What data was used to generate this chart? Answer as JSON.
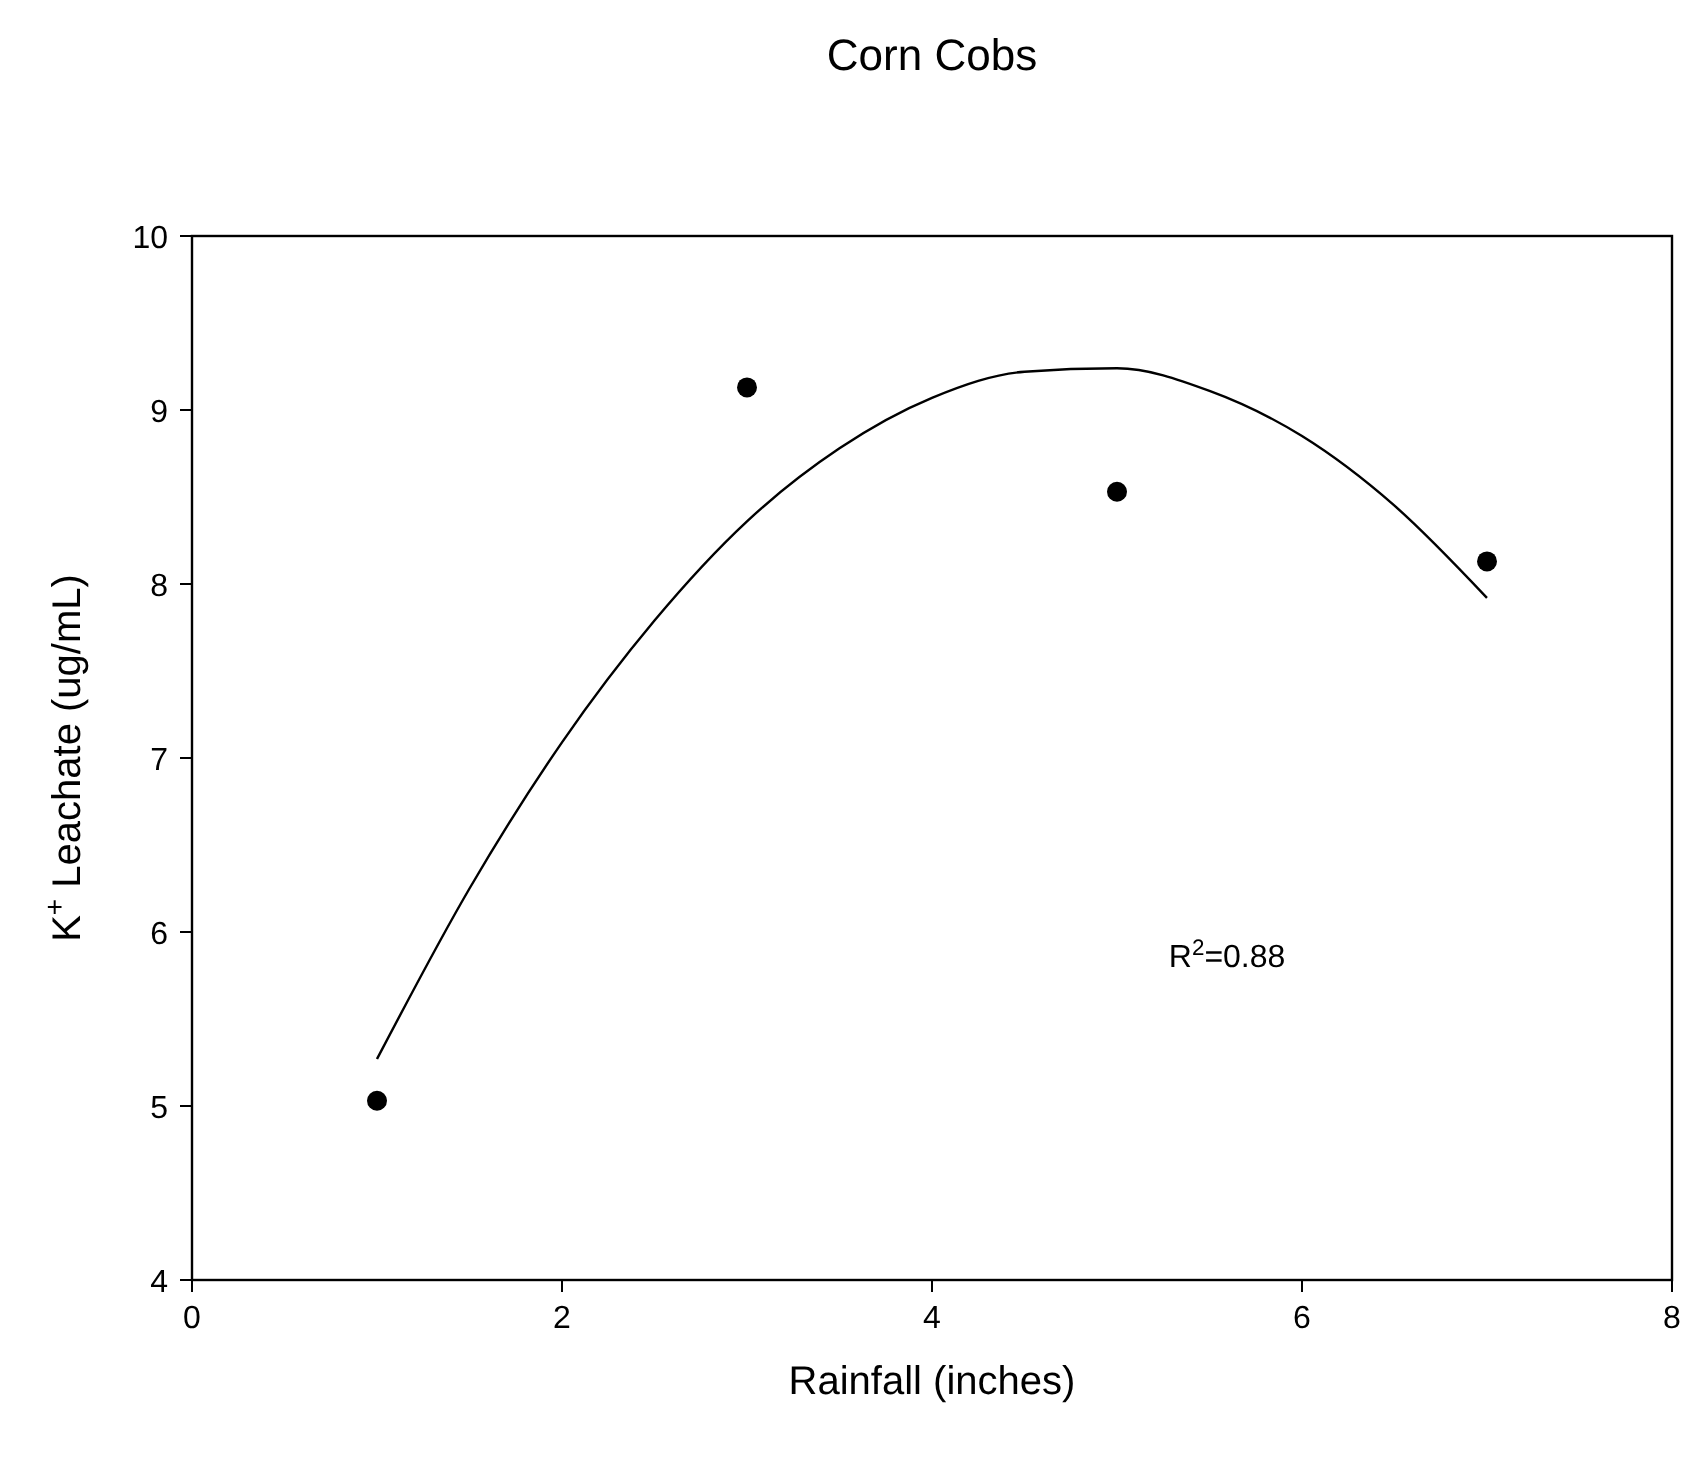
{
  "chart_data": {
    "type": "scatter",
    "title": "Corn Cobs",
    "xlabel": "Rainfall (inches)",
    "ylabel": "K$^{+}$ Leachate (ug/mL)",
    "xlim": [
      0,
      8
    ],
    "xticks": [
      0,
      2,
      4,
      6,
      8
    ],
    "ylim": [
      4,
      10
    ],
    "yticks": [
      4,
      5,
      6,
      7,
      8,
      9,
      10
    ],
    "grid": false,
    "marker": "circle",
    "series": [
      {
        "color": "#000000",
        "x": [
          1,
          3,
          5,
          7
        ],
        "values": [
          5.03,
          9.13,
          8.53,
          8.13
        ]
      },
      {
        "type": "line",
        "color": "#000000",
        "marker": "none",
        "x": [
          1,
          1.5,
          2,
          2.5,
          3,
          3.5,
          4,
          4.5,
          5,
          5.5,
          6,
          6.5,
          7
        ],
        "values": [
          5.27,
          6.25,
          7.09,
          7.79,
          8.36,
          8.78,
          9.07,
          9.22,
          9.24,
          9.11,
          8.85,
          8.45,
          7.92
        ]
      }
    ],
    "annotations": [
      "R$^{2}$=0.88"
    ]
  }
}
